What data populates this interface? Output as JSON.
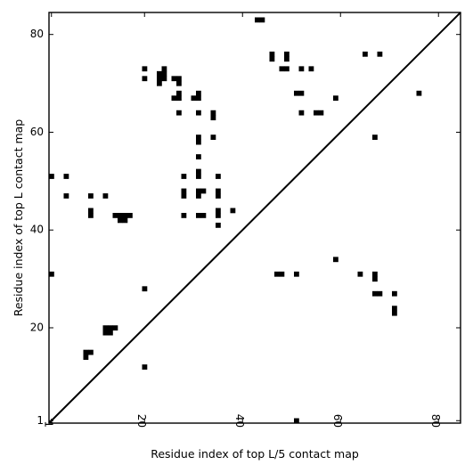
{
  "chart_data": {
    "type": "heatmap",
    "title": "",
    "xlabel": "Residue index of top L/5 contact map",
    "ylabel": "Residue index of top L contact map",
    "xlim": [
      0.5,
      84.5
    ],
    "ylim": [
      0.5,
      84.5
    ],
    "xticks": [
      1,
      20,
      40,
      60,
      80
    ],
    "yticks": [
      1,
      20,
      40,
      60,
      80
    ],
    "xtick_labels": [
      "1",
      "20",
      "40",
      "60",
      "80"
    ],
    "ytick_labels": [
      "1",
      "20",
      "40",
      "60",
      "80"
    ],
    "xtick_rotation": -90,
    "diagonal": true,
    "grid": false,
    "cell_color": "#000000",
    "background_color": "#ffffff",
    "cells_upper": [
      [
        43,
        83
      ],
      [
        44,
        83
      ],
      [
        46,
        76
      ],
      [
        46,
        75
      ],
      [
        49,
        76
      ],
      [
        49,
        75
      ],
      [
        48,
        73
      ],
      [
        49,
        73
      ],
      [
        52,
        73
      ],
      [
        54,
        73
      ],
      [
        65,
        76
      ],
      [
        68,
        76
      ],
      [
        76,
        68
      ],
      [
        20,
        73
      ],
      [
        23,
        72
      ],
      [
        24,
        73
      ],
      [
        24,
        72
      ],
      [
        23,
        71
      ],
      [
        24,
        71
      ],
      [
        26,
        71
      ],
      [
        27,
        71
      ],
      [
        27,
        70
      ],
      [
        23,
        70
      ],
      [
        20,
        71
      ],
      [
        26,
        67
      ],
      [
        27,
        67
      ],
      [
        27,
        68
      ],
      [
        30,
        67
      ],
      [
        31,
        67
      ],
      [
        31,
        68
      ],
      [
        27,
        64
      ],
      [
        31,
        64
      ],
      [
        34,
        64
      ],
      [
        34,
        63
      ],
      [
        51,
        68
      ],
      [
        52,
        68
      ],
      [
        59,
        67
      ],
      [
        52,
        64
      ],
      [
        55,
        64
      ],
      [
        56,
        64
      ],
      [
        67,
        59
      ],
      [
        31,
        59
      ],
      [
        31,
        58
      ],
      [
        34,
        59
      ],
      [
        31,
        55
      ],
      [
        28,
        51
      ],
      [
        31,
        52
      ],
      [
        31,
        51
      ],
      [
        35,
        51
      ],
      [
        28,
        48
      ],
      [
        28,
        47
      ],
      [
        31,
        48
      ],
      [
        32,
        48
      ],
      [
        31,
        47
      ],
      [
        35,
        48
      ],
      [
        35,
        47
      ],
      [
        28,
        43
      ],
      [
        31,
        43
      ],
      [
        32,
        43
      ],
      [
        35,
        44
      ],
      [
        35,
        43
      ],
      [
        38,
        44
      ],
      [
        35,
        41
      ],
      [
        1,
        51
      ],
      [
        4,
        51
      ],
      [
        4,
        47
      ],
      [
        9,
        47
      ],
      [
        12,
        47
      ],
      [
        9,
        44
      ],
      [
        9,
        43
      ],
      [
        14,
        43
      ],
      [
        15,
        43
      ],
      [
        16,
        43
      ],
      [
        17,
        43
      ],
      [
        15,
        42
      ],
      [
        16,
        42
      ]
    ],
    "cells_lower": [
      [
        1,
        31
      ],
      [
        59,
        34
      ],
      [
        47,
        31
      ],
      [
        48,
        31
      ],
      [
        51,
        31
      ],
      [
        64,
        31
      ],
      [
        67,
        31
      ],
      [
        67,
        30
      ],
      [
        67,
        27
      ],
      [
        68,
        27
      ],
      [
        71,
        27
      ],
      [
        71,
        24
      ],
      [
        71,
        23
      ],
      [
        12,
        20
      ],
      [
        13,
        20
      ],
      [
        14,
        20
      ],
      [
        12,
        19
      ],
      [
        13,
        19
      ],
      [
        8,
        15
      ],
      [
        9,
        15
      ],
      [
        8,
        14
      ],
      [
        20,
        28
      ],
      [
        20,
        12
      ],
      [
        51,
        1
      ]
    ]
  }
}
